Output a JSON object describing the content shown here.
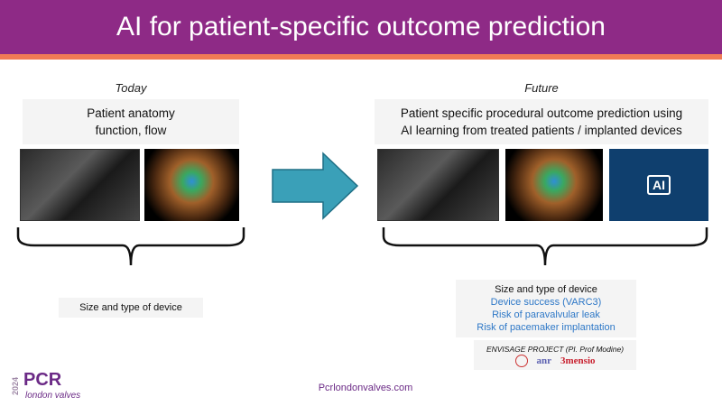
{
  "title": "AI for patient-specific outcome prediction",
  "today": {
    "label": "Today",
    "box_lines": [
      "Patient anatomy",
      "function, flow"
    ],
    "output": "Size and type of device"
  },
  "future": {
    "label": "Future",
    "box_lines": [
      "Patient specific procedural outcome prediction using",
      "AI learning from treated patients / implanted devices"
    ],
    "outputs": [
      "Size and type of device",
      "Device success (VARC3)",
      "Risk of paravalvular leak",
      "Risk of pacemaker implantation"
    ],
    "project": "ENVISAGE PROJECT (PI. Prof Modine)",
    "ai_badge": "AI",
    "partners": [
      "anr",
      "3mensio"
    ]
  },
  "footer": {
    "url": "Pcrlondonvalves.com",
    "logo_year": "2024",
    "logo_name": "PCR",
    "logo_sub": "london valves"
  },
  "colors": {
    "header": "#8e2a86",
    "strip": "#f07a55",
    "arrow": "#3aa0b8",
    "blue_text": "#2e78c7"
  }
}
